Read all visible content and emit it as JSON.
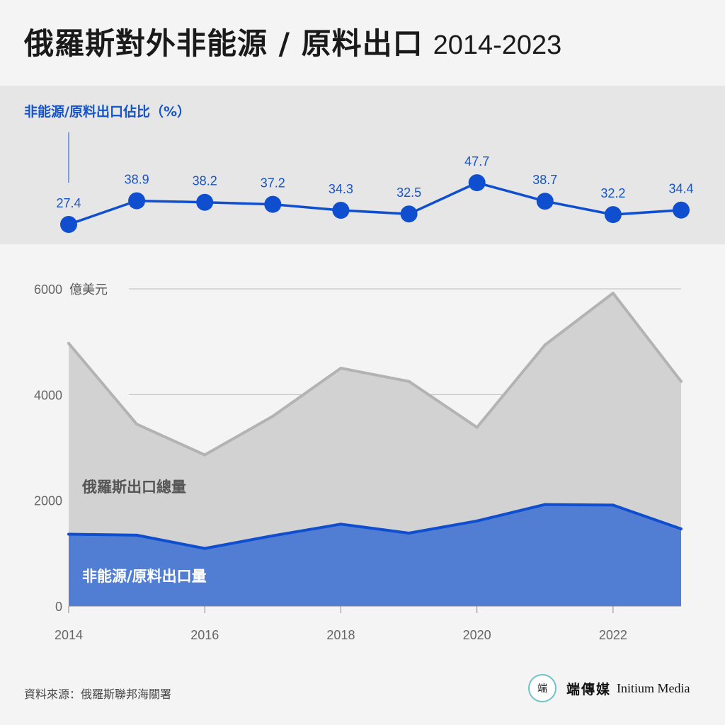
{
  "title": {
    "main": "俄羅斯對外非能源 / 原料出口",
    "years": "2014-2023"
  },
  "top_chart_label": "非能源/原料出口佔比（%）",
  "source": "資料來源：俄羅斯聯邦海關署",
  "brand": {
    "icon_glyph": "端",
    "name_cn": "端傳媒",
    "name_en": "Initium Media"
  },
  "colors": {
    "accent": "#1554c9",
    "area_total": "#d2d2d2",
    "line_total": "#b3b3b3",
    "area_nonenergy": "#517ed3",
    "line_nonenergy": "#0f4fcf"
  },
  "chart_data": [
    {
      "type": "line",
      "ylabel": "非能源/原料出口佔比（%）",
      "x": [
        2014,
        2015,
        2016,
        2017,
        2018,
        2019,
        2020,
        2021,
        2022,
        2023
      ],
      "series": [
        {
          "values": [
            27.4,
            38.9,
            38.2,
            37.2,
            34.3,
            32.5,
            47.7,
            38.7,
            32.2,
            34.4
          ],
          "value_labels": [
            "27.4",
            "38.9",
            "38.2",
            "37.2",
            "34.3",
            "32.5",
            "47.7",
            "38.7",
            "32.2",
            "34.4"
          ]
        }
      ]
    },
    {
      "type": "area",
      "x": [
        2014,
        2015,
        2016,
        2017,
        2018,
        2019,
        2020,
        2021,
        2022,
        2023
      ],
      "ylim": [
        0,
        6000
      ],
      "yunit": "億美元",
      "y_ticks": [
        {
          "value": 0,
          "label": "0"
        },
        {
          "value": 2000,
          "label": "2000"
        },
        {
          "value": 4000,
          "label": "4000"
        },
        {
          "value": 6000,
          "label": "6000"
        }
      ],
      "x_ticks": [
        {
          "value": 2014,
          "label": "2014"
        },
        {
          "value": 2016,
          "label": "2016"
        },
        {
          "value": 2018,
          "label": "2018"
        },
        {
          "value": 2020,
          "label": "2020"
        },
        {
          "value": 2022,
          "label": "2022"
        }
      ],
      "grid": true,
      "series": [
        {
          "name": "俄羅斯出口總量",
          "values": [
            4970,
            3440,
            2860,
            3590,
            4500,
            4250,
            3380,
            4940,
            5920,
            4250
          ]
        },
        {
          "name": "非能源/原料出口量",
          "values": [
            1360,
            1340,
            1090,
            1330,
            1550,
            1380,
            1610,
            1920,
            1910,
            1460
          ]
        }
      ]
    }
  ]
}
